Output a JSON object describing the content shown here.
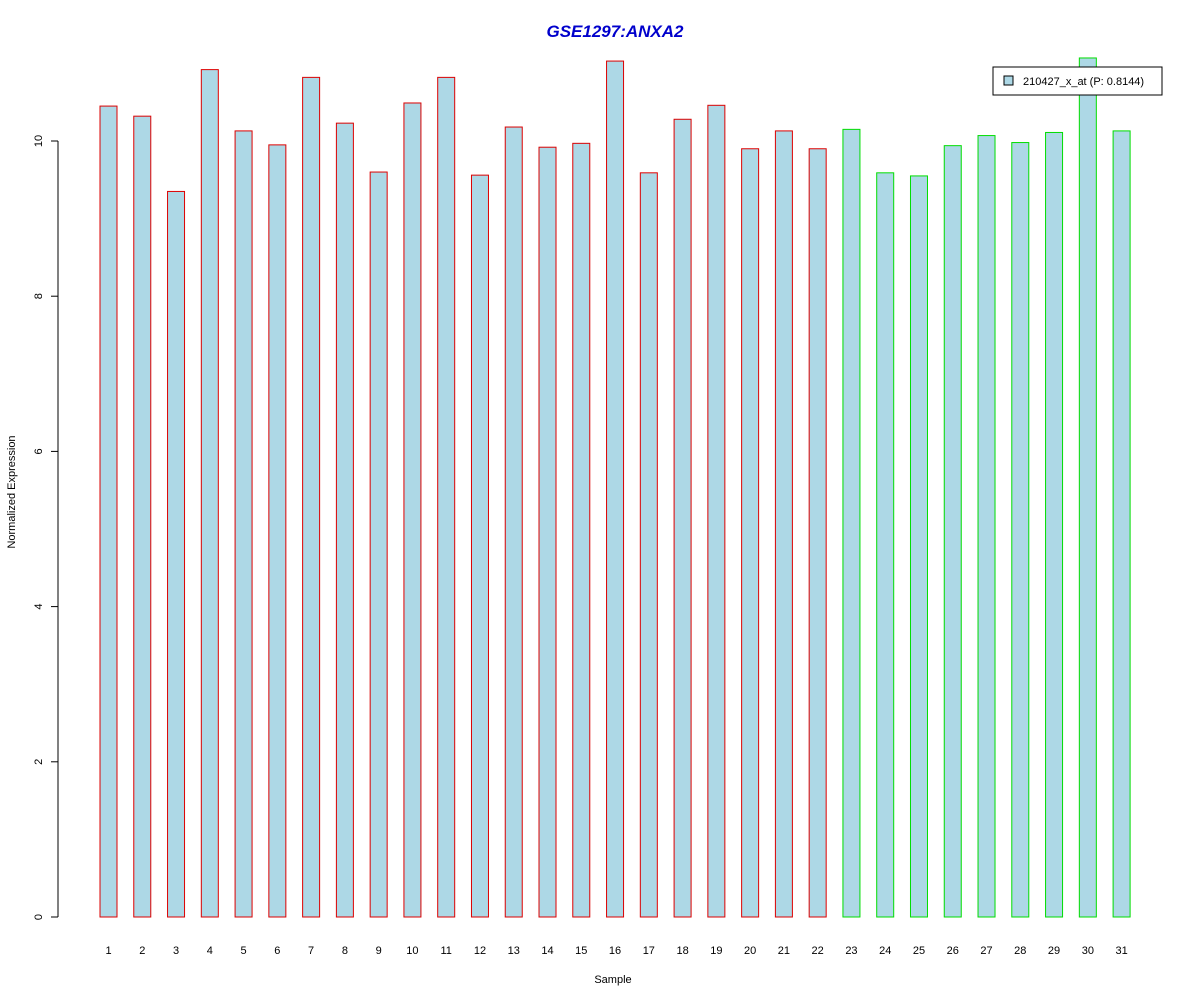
{
  "chart_data": {
    "type": "bar",
    "title": "GSE1297:ANXA2",
    "xlabel": "Sample",
    "ylabel": "Normalized Expression",
    "categories": [
      "1",
      "2",
      "3",
      "4",
      "5",
      "6",
      "7",
      "8",
      "9",
      "10",
      "11",
      "12",
      "13",
      "14",
      "15",
      "16",
      "17",
      "18",
      "19",
      "20",
      "21",
      "22",
      "23",
      "24",
      "25",
      "26",
      "27",
      "28",
      "29",
      "30",
      "31"
    ],
    "series": [
      {
        "name": "210427_x_at (P: 0.8144)",
        "values": [
          10.45,
          10.32,
          9.35,
          10.92,
          10.13,
          9.95,
          10.82,
          10.23,
          9.6,
          10.49,
          10.82,
          9.56,
          10.18,
          9.92,
          9.97,
          11.03,
          9.59,
          10.28,
          10.46,
          9.9,
          10.13,
          9.9,
          10.15,
          9.59,
          9.55,
          9.94,
          10.07,
          9.98,
          10.11,
          11.07,
          10.13
        ]
      }
    ],
    "groups": [
      {
        "samples": "1-22",
        "border_color": "#dd0000"
      },
      {
        "samples": "23-31",
        "border_color": "#00dd00"
      }
    ],
    "fill_color": "#add8e6",
    "yticks": [
      0,
      2,
      4,
      6,
      8,
      10
    ],
    "ylim": [
      0,
      11.05
    ],
    "grid": false,
    "legend_position": "top-right"
  }
}
